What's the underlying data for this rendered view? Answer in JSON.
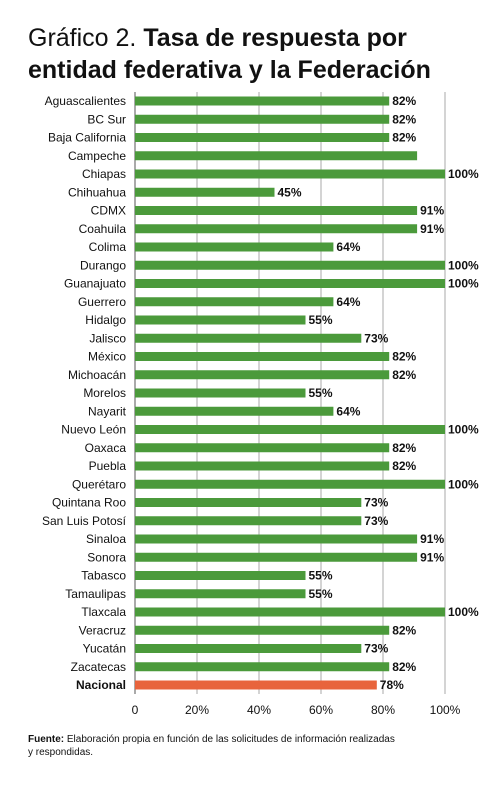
{
  "chart_data": {
    "type": "bar",
    "orientation": "horizontal",
    "title_prefix": "Gráfico 2.",
    "title": "Tasa de respuesta por entidad federativa y la Federación",
    "categories": [
      "Aguascalientes",
      "BC Sur",
      "Baja California",
      "Campeche",
      "Chiapas",
      "Chihuahua",
      "CDMX",
      "Coahuila",
      "Colima",
      "Durango",
      "Guanajuato",
      "Guerrero",
      "Hidalgo",
      "Jalisco",
      "México",
      "Michoacán",
      "Morelos",
      "Nayarit",
      "Nuevo León",
      "Oaxaca",
      "Puebla",
      "Querétaro",
      "Quintana Roo",
      "San Luis Potosí",
      "Sinaloa",
      "Sonora",
      "Tabasco",
      "Tamaulipas",
      "Tlaxcala",
      "Veracruz",
      "Yucatán",
      "Zacatecas",
      "Nacional"
    ],
    "values": [
      82,
      82,
      82,
      91,
      100,
      45,
      91,
      91,
      64,
      100,
      100,
      64,
      55,
      73,
      82,
      82,
      55,
      64,
      100,
      82,
      82,
      100,
      73,
      73,
      91,
      91,
      55,
      55,
      100,
      82,
      73,
      82,
      78
    ],
    "value_labels": [
      "82%",
      "82%",
      "82%",
      null,
      "100%",
      "45%",
      "91%",
      "91%",
      "64%",
      "100%",
      "100%",
      "64%",
      "55%",
      "73%",
      "82%",
      "82%",
      "55%",
      "64%",
      "100%",
      "82%",
      "82%",
      "100%",
      "73%",
      "73%",
      "91%",
      "91%",
      "55%",
      "55%",
      "100%",
      "82%",
      "73%",
      "82%",
      "78%"
    ],
    "colors": [
      "#4b9a3b",
      "#4b9a3b",
      "#4b9a3b",
      "#4b9a3b",
      "#4b9a3b",
      "#4b9a3b",
      "#4b9a3b",
      "#4b9a3b",
      "#4b9a3b",
      "#4b9a3b",
      "#4b9a3b",
      "#4b9a3b",
      "#4b9a3b",
      "#4b9a3b",
      "#4b9a3b",
      "#4b9a3b",
      "#4b9a3b",
      "#4b9a3b",
      "#4b9a3b",
      "#4b9a3b",
      "#4b9a3b",
      "#4b9a3b",
      "#4b9a3b",
      "#4b9a3b",
      "#4b9a3b",
      "#4b9a3b",
      "#4b9a3b",
      "#4b9a3b",
      "#4b9a3b",
      "#4b9a3b",
      "#4b9a3b",
      "#4b9a3b",
      "#e8643c"
    ],
    "xlim": [
      0,
      100
    ],
    "xticks": [
      0,
      {
        "value": 20,
        "label": "20%"
      },
      {
        "value": 40,
        "label": "40%"
      },
      {
        "value": 60,
        "label": "60%"
      },
      {
        "value": 80,
        "label": "80%"
      },
      {
        "value": 100,
        "label": "100%"
      }
    ],
    "grid": true,
    "source_label": "Fuente:",
    "source": "Elaboración propia en función de las solicitudes de información realizadas y respondidas."
  }
}
